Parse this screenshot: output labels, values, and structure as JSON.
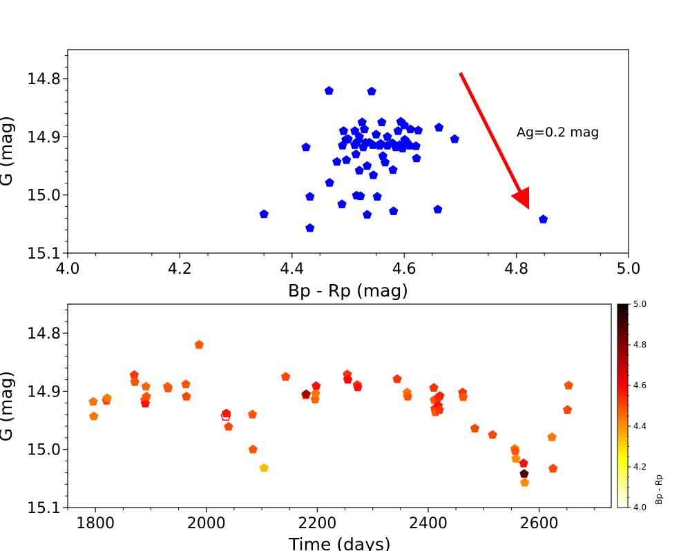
{
  "chart_data": [
    {
      "type": "scatter",
      "title": "",
      "xlabel": "Bp - Rp (mag)",
      "ylabel": "G (mag)",
      "xlim": [
        4.0,
        5.0
      ],
      "ylim": [
        15.1,
        14.75
      ],
      "y_inverted": true,
      "xticks": [
        4.0,
        4.2,
        4.4,
        4.6,
        4.8,
        5.0
      ],
      "xtick_labels": [
        "4.0",
        "4.2",
        "4.4",
        "4.6",
        "4.8",
        "5.0"
      ],
      "yticks": [
        14.8,
        14.9,
        15.0,
        15.1
      ],
      "ytick_labels": [
        "14.8",
        "14.9",
        "15.0",
        "15.1"
      ],
      "marker": "pentagon",
      "color": "#0000ff",
      "points": [
        [
          4.35,
          15.033
        ],
        [
          4.425,
          14.918
        ],
        [
          4.432,
          15.003
        ],
        [
          4.432,
          15.057
        ],
        [
          4.466,
          14.821
        ],
        [
          4.467,
          14.979
        ],
        [
          4.48,
          14.943
        ],
        [
          4.489,
          15.016
        ],
        [
          4.49,
          14.915
        ],
        [
          4.492,
          14.89
        ],
        [
          4.496,
          14.905
        ],
        [
          4.497,
          14.94
        ],
        [
          4.5,
          14.904
        ],
        [
          4.512,
          14.89
        ],
        [
          4.512,
          14.914
        ],
        [
          4.514,
          14.93
        ],
        [
          4.515,
          15.001
        ],
        [
          4.516,
          14.909
        ],
        [
          4.52,
          14.9
        ],
        [
          4.52,
          14.958
        ],
        [
          4.522,
          15.002
        ],
        [
          4.525,
          14.875
        ],
        [
          4.527,
          14.918
        ],
        [
          4.529,
          14.887
        ],
        [
          4.531,
          14.91
        ],
        [
          4.534,
          14.95
        ],
        [
          4.534,
          15.034
        ],
        [
          4.538,
          14.91
        ],
        [
          4.542,
          14.822
        ],
        [
          4.544,
          14.914
        ],
        [
          4.545,
          14.966
        ],
        [
          4.55,
          14.896
        ],
        [
          4.552,
          15.003
        ],
        [
          4.556,
          14.915
        ],
        [
          4.558,
          14.912
        ],
        [
          4.56,
          14.875
        ],
        [
          4.562,
          14.933
        ],
        [
          4.566,
          14.944
        ],
        [
          4.57,
          14.9
        ],
        [
          4.57,
          14.915
        ],
        [
          4.579,
          14.911
        ],
        [
          4.58,
          14.957
        ],
        [
          4.581,
          15.028
        ],
        [
          4.585,
          14.918
        ],
        [
          4.589,
          14.89
        ],
        [
          4.592,
          14.914
        ],
        [
          4.594,
          14.874
        ],
        [
          4.597,
          14.92
        ],
        [
          4.6,
          14.88
        ],
        [
          4.601,
          14.905
        ],
        [
          4.604,
          14.909
        ],
        [
          4.61,
          14.915
        ],
        [
          4.611,
          14.887
        ],
        [
          4.621,
          14.916
        ],
        [
          4.625,
          14.889
        ],
        [
          4.622,
          14.937
        ],
        [
          4.66,
          15.025
        ],
        [
          4.662,
          14.884
        ],
        [
          4.69,
          14.904
        ],
        [
          4.848,
          15.042
        ]
      ],
      "annotation": {
        "text": "Ag=0.2 mag",
        "color": "#008000",
        "arrow_color": "#ff0000",
        "arrow_from": [
          4.7,
          14.79
        ],
        "arrow_to": [
          4.82,
          15.02
        ]
      }
    },
    {
      "type": "scatter",
      "title": "",
      "xlabel": "Time (days)",
      "ylabel": "G (mag)",
      "xlim": [
        1750,
        2730
      ],
      "ylim": [
        15.1,
        14.75
      ],
      "y_inverted": true,
      "xticks": [
        1800,
        2000,
        2200,
        2400,
        2600
      ],
      "xtick_labels": [
        "1800",
        "2000",
        "2200",
        "2400",
        "2600"
      ],
      "yticks": [
        14.8,
        14.9,
        15.0,
        15.1
      ],
      "ytick_labels": [
        "14.8",
        "14.9",
        "15.0",
        "15.1"
      ],
      "marker": "pentagon",
      "color_by": "Bp - Rp",
      "colormap": "hot_r",
      "colorbar": {
        "label": "Bp - Rp",
        "range": [
          4.0,
          5.0
        ],
        "ticks": [
          4.0,
          4.2,
          4.4,
          4.6,
          4.8,
          5.0
        ],
        "tick_labels": [
          "4.0",
          "4.2",
          "4.4",
          "4.6",
          "4.8",
          "5.0"
        ]
      },
      "points": [
        {
          "t": 1796,
          "g": 14.918,
          "c": 4.45
        },
        {
          "t": 1797,
          "g": 14.943,
          "c": 4.45
        },
        {
          "t": 1820,
          "g": 14.916,
          "c": 4.55
        },
        {
          "t": 1821,
          "g": 14.912,
          "c": 4.45
        },
        {
          "t": 1870,
          "g": 14.872,
          "c": 4.55
        },
        {
          "t": 1871,
          "g": 14.884,
          "c": 4.5
        },
        {
          "t": 1889,
          "g": 14.915,
          "c": 4.5
        },
        {
          "t": 1890,
          "g": 14.921,
          "c": 4.6
        },
        {
          "t": 1891,
          "g": 14.892,
          "c": 4.48
        },
        {
          "t": 1892,
          "g": 14.909,
          "c": 4.5
        },
        {
          "t": 1930,
          "g": 14.892,
          "c": 4.48
        },
        {
          "t": 1931,
          "g": 14.895,
          "c": 4.5
        },
        {
          "t": 1963,
          "g": 14.888,
          "c": 4.5
        },
        {
          "t": 1964,
          "g": 14.909,
          "c": 4.52
        },
        {
          "t": 1987,
          "g": 14.82,
          "c": 4.5
        },
        {
          "t": 2035,
          "g": 14.943,
          "c": 4.0
        },
        {
          "t": 2036,
          "g": 14.938,
          "c": 4.6
        },
        {
          "t": 2040,
          "g": 14.961,
          "c": 4.52
        },
        {
          "t": 2083,
          "g": 14.94,
          "c": 4.5
        },
        {
          "t": 2084,
          "g": 15.0,
          "c": 4.5
        },
        {
          "t": 2104,
          "g": 15.032,
          "c": 4.35
        },
        {
          "t": 2143,
          "g": 14.875,
          "c": 4.52
        },
        {
          "t": 2179,
          "g": 14.907,
          "c": 4.48
        },
        {
          "t": 2180,
          "g": 14.905,
          "c": 4.75
        },
        {
          "t": 2196,
          "g": 14.914,
          "c": 4.48
        },
        {
          "t": 2197,
          "g": 14.904,
          "c": 4.45
        },
        {
          "t": 2198,
          "g": 14.891,
          "c": 4.6
        },
        {
          "t": 2254,
          "g": 14.871,
          "c": 4.55
        },
        {
          "t": 2255,
          "g": 14.88,
          "c": 4.62
        },
        {
          "t": 2272,
          "g": 14.889,
          "c": 4.55
        },
        {
          "t": 2273,
          "g": 14.893,
          "c": 4.6
        },
        {
          "t": 2344,
          "g": 14.879,
          "c": 4.55
        },
        {
          "t": 2362,
          "g": 14.902,
          "c": 4.45
        },
        {
          "t": 2363,
          "g": 14.909,
          "c": 4.5
        },
        {
          "t": 2410,
          "g": 14.894,
          "c": 4.55
        },
        {
          "t": 2411,
          "g": 14.915,
          "c": 4.5
        },
        {
          "t": 2412,
          "g": 14.93,
          "c": 4.55
        },
        {
          "t": 2413,
          "g": 14.936,
          "c": 4.5
        },
        {
          "t": 2417,
          "g": 14.912,
          "c": 4.55
        },
        {
          "t": 2418,
          "g": 14.925,
          "c": 4.6
        },
        {
          "t": 2420,
          "g": 14.932,
          "c": 4.55
        },
        {
          "t": 2421,
          "g": 14.908,
          "c": 4.58
        },
        {
          "t": 2462,
          "g": 14.902,
          "c": 4.55
        },
        {
          "t": 2463,
          "g": 14.91,
          "c": 4.5
        },
        {
          "t": 2484,
          "g": 14.964,
          "c": 4.52
        },
        {
          "t": 2516,
          "g": 14.975,
          "c": 4.52
        },
        {
          "t": 2556,
          "g": 14.999,
          "c": 4.45
        },
        {
          "t": 2557,
          "g": 15.003,
          "c": 4.5
        },
        {
          "t": 2558,
          "g": 15.016,
          "c": 4.42
        },
        {
          "t": 2572,
          "g": 15.024,
          "c": 4.6
        },
        {
          "t": 2573,
          "g": 15.042,
          "c": 4.9
        },
        {
          "t": 2574,
          "g": 15.057,
          "c": 4.42
        },
        {
          "t": 2623,
          "g": 14.979,
          "c": 4.45
        },
        {
          "t": 2625,
          "g": 15.033,
          "c": 4.52
        },
        {
          "t": 2651,
          "g": 14.932,
          "c": 4.52
        },
        {
          "t": 2653,
          "g": 14.89,
          "c": 4.5
        }
      ]
    }
  ]
}
